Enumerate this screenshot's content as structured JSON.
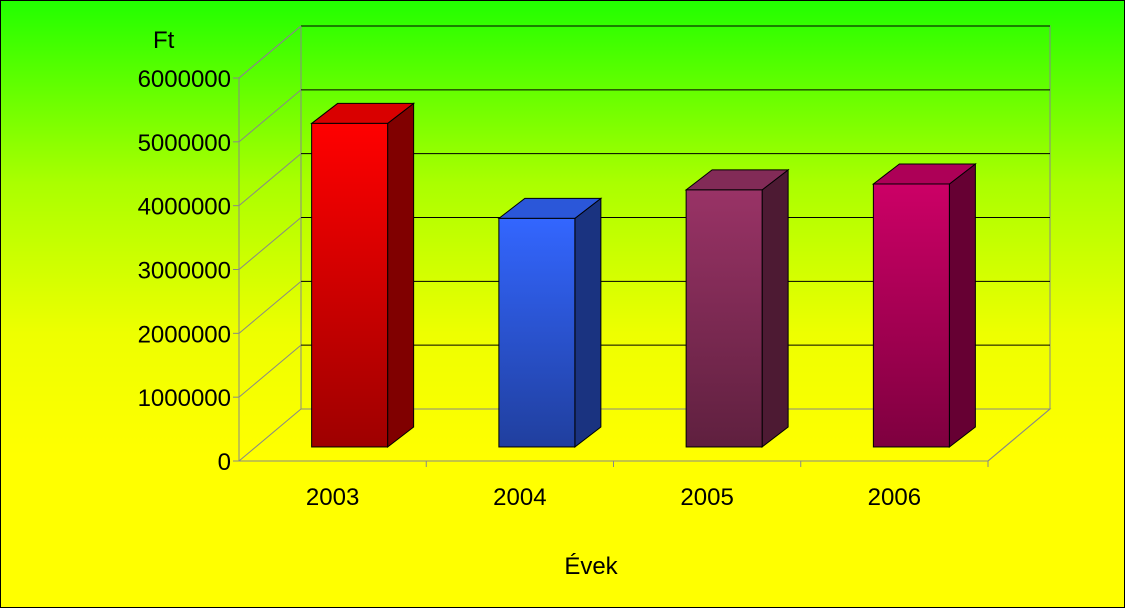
{
  "chart_data": {
    "type": "bar",
    "categories": [
      "2003",
      "2004",
      "2005",
      "2006"
    ],
    "values": [
      5450000,
      3850000,
      4330000,
      4430000
    ],
    "colors": [
      "#ff0000",
      "#3366ff",
      "#993366",
      "#cc0066"
    ],
    "ylabel": "Ft",
    "xlabel": "Évek",
    "ylim": [
      0,
      6000000
    ],
    "yticks": [
      "0",
      "1000000",
      "2000000",
      "3000000",
      "4000000",
      "5000000",
      "6000000"
    ],
    "grid": true,
    "legend": "none",
    "style": "3d-column"
  }
}
